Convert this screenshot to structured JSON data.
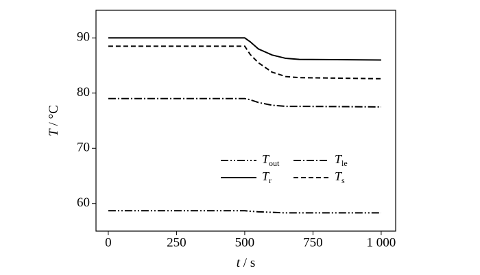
{
  "chart_data": {
    "type": "line",
    "x_label": "t / s",
    "y_label": "T / °C",
    "x": [
      0,
      500,
      520,
      550,
      600,
      650,
      700,
      1000
    ],
    "series": [
      {
        "name": "Tout",
        "color": "#000000",
        "linestyle": "dashdotdot",
        "values": [
          58.7,
          58.7,
          58.6,
          58.5,
          58.4,
          58.3,
          58.3,
          58.3
        ]
      },
      {
        "name": "Tle",
        "color": "#000000",
        "linestyle": "dashdot",
        "values": [
          79,
          79,
          78.8,
          78.3,
          77.8,
          77.6,
          77.6,
          77.5
        ]
      },
      {
        "name": "Tr",
        "color": "#000000",
        "linestyle": "solid",
        "values": [
          90,
          90,
          89.3,
          88,
          86.9,
          86.3,
          86.1,
          86
        ]
      },
      {
        "name": "Ts",
        "color": "#000000",
        "linestyle": "dashed",
        "values": [
          88.5,
          88.5,
          87,
          85.5,
          83.8,
          83,
          82.8,
          82.6
        ]
      }
    ],
    "xlim": [
      -45,
      1053
    ],
    "ylim": [
      55,
      95
    ],
    "xticks": [
      0,
      250,
      500,
      750,
      {
        "value": 1000,
        "label": "1 000"
      }
    ],
    "yticks": [
      60,
      70,
      80,
      90
    ],
    "legend": "center-right"
  }
}
